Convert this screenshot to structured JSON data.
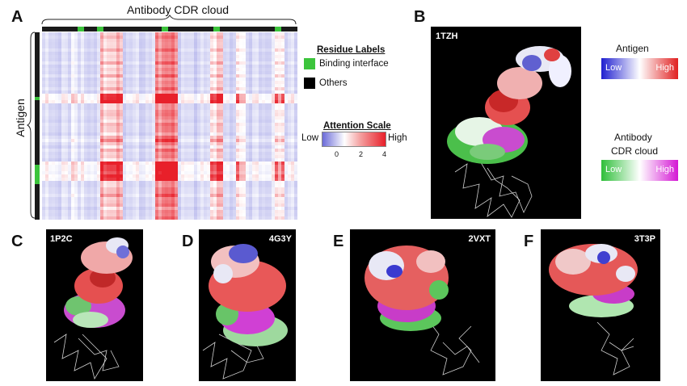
{
  "panels": {
    "a": {
      "letter": "A",
      "top_label": "Antibody CDR cloud",
      "side_label": "Antigen"
    },
    "b": {
      "letter": "B",
      "pdb": "1TZH"
    },
    "c": {
      "letter": "C",
      "pdb": "1P2C"
    },
    "d": {
      "letter": "D",
      "pdb": "4G3Y"
    },
    "e": {
      "letter": "E",
      "pdb": "2VXT"
    },
    "f": {
      "letter": "F",
      "pdb": "3T3P"
    }
  },
  "residue_legend": {
    "title": "Residue Labels",
    "items": [
      {
        "label": "Binding interface",
        "color": "#3cc43c"
      },
      {
        "label": "Others",
        "color": "#000000"
      }
    ]
  },
  "attention_scale": {
    "title": "Attention Scale",
    "low": "Low",
    "high": "High",
    "ticks": [
      "0",
      "2",
      "4"
    ],
    "colors": [
      "#6b6bd8",
      "#ffffff",
      "#e8202a"
    ]
  },
  "antigen_scale": {
    "title": "Antigen",
    "low": "Low",
    "high": "High",
    "colors": [
      "#1f1fd0",
      "#ffffff",
      "#e02020"
    ]
  },
  "antibody_scale": {
    "title_line1": "Antibody",
    "title_line2": "CDR cloud",
    "low": "Low",
    "high": "High",
    "colors": [
      "#2fbf3a",
      "#ffffff",
      "#d418d4"
    ]
  },
  "colors": {
    "binding": "#3cc43c",
    "heat_high": "#e8202a",
    "heat_low": "#6b6bd8"
  }
}
